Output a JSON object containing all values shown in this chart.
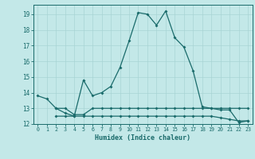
{
  "title": "",
  "xlabel": "Humidex (Indice chaleur)",
  "xlim": [
    -0.5,
    23.5
  ],
  "ylim": [
    12,
    19.6
  ],
  "yticks": [
    12,
    13,
    14,
    15,
    16,
    17,
    18,
    19
  ],
  "xticks": [
    0,
    1,
    2,
    3,
    4,
    5,
    6,
    7,
    8,
    9,
    10,
    11,
    12,
    13,
    14,
    15,
    16,
    17,
    18,
    19,
    20,
    21,
    22,
    23
  ],
  "bg_color": "#c3e8e8",
  "line_color": "#1a6b6b",
  "grid_color": "#a8d4d4",
  "series1_x": [
    0,
    1,
    2,
    3,
    4,
    5,
    6,
    7,
    8,
    9,
    10,
    11,
    12,
    13,
    14,
    15,
    16,
    17,
    18,
    19,
    20,
    21,
    22,
    23
  ],
  "series1_y": [
    13.8,
    13.6,
    13.0,
    12.7,
    12.5,
    14.8,
    13.8,
    14.0,
    14.4,
    15.6,
    17.3,
    19.1,
    19.0,
    18.3,
    19.2,
    17.5,
    16.9,
    15.4,
    13.1,
    13.0,
    12.9,
    12.9,
    12.1,
    12.2
  ],
  "series2_x": [
    2,
    3,
    4,
    5,
    6,
    7,
    8,
    9,
    10,
    11,
    12,
    13,
    14,
    15,
    16,
    17,
    18,
    19,
    20,
    21,
    22,
    23
  ],
  "series2_y": [
    13.0,
    13.0,
    12.6,
    12.6,
    13.0,
    13.0,
    13.0,
    13.0,
    13.0,
    13.0,
    13.0,
    13.0,
    13.0,
    13.0,
    13.0,
    13.0,
    13.0,
    13.0,
    13.0,
    13.0,
    13.0,
    13.0
  ],
  "series3_x": [
    2,
    3,
    4,
    5,
    6,
    7,
    8,
    9,
    10,
    11,
    12,
    13,
    14,
    15,
    16,
    17,
    18,
    19,
    20,
    21,
    22,
    23
  ],
  "series3_y": [
    12.5,
    12.5,
    12.5,
    12.5,
    12.5,
    12.5,
    12.5,
    12.5,
    12.5,
    12.5,
    12.5,
    12.5,
    12.5,
    12.5,
    12.5,
    12.5,
    12.5,
    12.5,
    12.4,
    12.3,
    12.2,
    12.2
  ],
  "marker_size": 2.0,
  "line_width": 0.9
}
